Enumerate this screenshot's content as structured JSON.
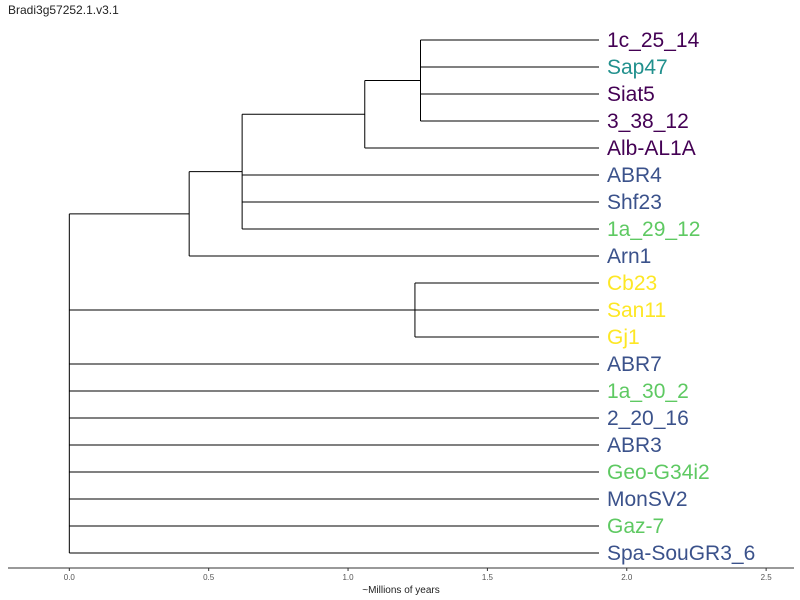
{
  "title": "Bradi3g57252.1.v3.1",
  "axis": {
    "label": "~Millions of years",
    "ticks": [
      "0.0",
      "0.5",
      "1.0",
      "1.5",
      "2.0",
      "2.5"
    ],
    "tick_values": [
      0,
      0.5,
      1.0,
      1.5,
      2.0,
      2.5
    ],
    "range": [
      -0.22,
      2.6
    ]
  },
  "colors": {
    "dark_purple": "#440154",
    "teal": "#21908d",
    "blue": "#3b528b",
    "green": "#5ec962",
    "yellow": "#fde725",
    "branch": "#000000"
  },
  "leaves": [
    {
      "name": "1c_25_14",
      "color": "#440154"
    },
    {
      "name": "Sap47",
      "color": "#21908d"
    },
    {
      "name": "Siat5",
      "color": "#440154"
    },
    {
      "name": "3_38_12",
      "color": "#440154"
    },
    {
      "name": "Alb-AL1A",
      "color": "#440154"
    },
    {
      "name": "ABR4",
      "color": "#3b528b"
    },
    {
      "name": "Shf23",
      "color": "#3b528b"
    },
    {
      "name": "1a_29_12",
      "color": "#5ec962"
    },
    {
      "name": "Arn1",
      "color": "#3b528b"
    },
    {
      "name": "Cb23",
      "color": "#fde725"
    },
    {
      "name": "San11",
      "color": "#fde725"
    },
    {
      "name": "Gj1",
      "color": "#fde725"
    },
    {
      "name": "ABR7",
      "color": "#3b528b"
    },
    {
      "name": "1a_30_2",
      "color": "#5ec962"
    },
    {
      "name": "2_20_16",
      "color": "#3b528b"
    },
    {
      "name": "ABR3",
      "color": "#3b528b"
    },
    {
      "name": "Geo-G34i2",
      "color": "#5ec962"
    },
    {
      "name": "MonSV2",
      "color": "#3b528b"
    },
    {
      "name": "Gaz-7",
      "color": "#5ec962"
    },
    {
      "name": "Spa-SouGR3_6",
      "color": "#3b528b"
    }
  ],
  "tree": {
    "age": 0.0,
    "children": [
      {
        "age": 0.43,
        "children": [
          {
            "age": 0.62,
            "children": [
              {
                "age": 1.06,
                "children": [
                  {
                    "age": 1.26,
                    "children": [
                      {
                        "leaf": 0
                      },
                      {
                        "leaf": 1
                      },
                      {
                        "leaf": 2
                      },
                      {
                        "leaf": 3
                      }
                    ]
                  },
                  {
                    "leaf": 4
                  }
                ]
              },
              {
                "leaf": 5
              },
              {
                "leaf": 6
              },
              {
                "leaf": 7
              }
            ]
          },
          {
            "leaf": 8
          }
        ]
      },
      {
        "age": 1.24,
        "children": [
          {
            "leaf": 9
          },
          {
            "leaf": 10
          },
          {
            "leaf": 11
          }
        ]
      },
      {
        "leaf": 12
      },
      {
        "leaf": 13
      },
      {
        "leaf": 14
      },
      {
        "leaf": 15
      },
      {
        "leaf": 16
      },
      {
        "leaf": 17
      },
      {
        "leaf": 18
      },
      {
        "leaf": 19
      }
    ]
  }
}
